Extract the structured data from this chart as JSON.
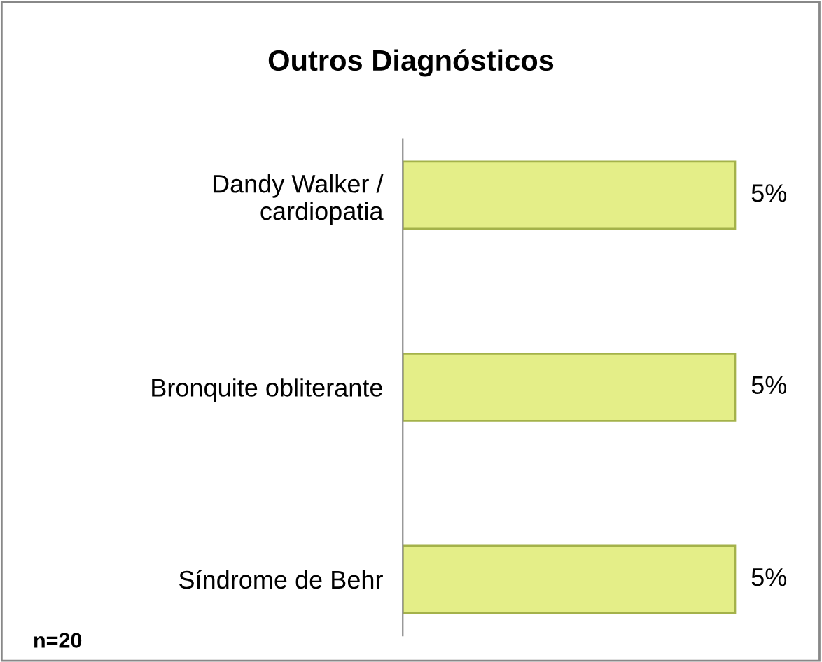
{
  "chart_data": {
    "type": "bar",
    "orientation": "horizontal",
    "title": "Outros Diagnósticos",
    "categories": [
      "Dandy Walker /\ncardiopatia",
      "Bronquite obliterante",
      "Síndrome de Behr"
    ],
    "values": [
      5,
      5,
      5
    ],
    "value_labels": [
      "5%",
      "5%",
      "5%"
    ],
    "color": "#e4ee88",
    "annotations": [
      "n=20"
    ],
    "grid": false,
    "legend": false,
    "tick_labels": "y"
  }
}
